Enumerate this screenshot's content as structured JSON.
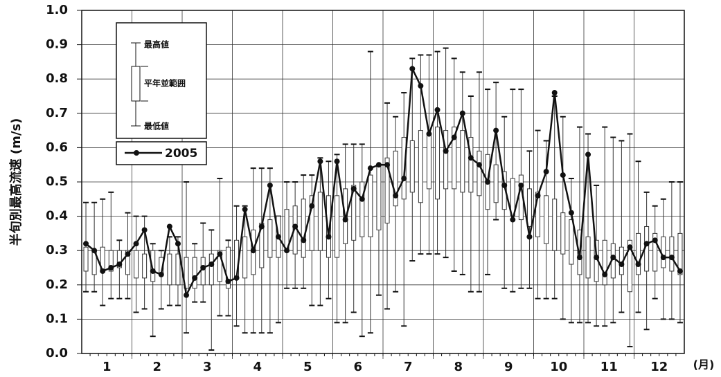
{
  "chart_data": {
    "type": "boxplot",
    "ylabel": "半旬別最高流速 (m/s)",
    "xunit": "(月)",
    "categories": [
      "1",
      "2",
      "3",
      "4",
      "5",
      "6",
      "7",
      "8",
      "9",
      "10",
      "11",
      "12"
    ],
    "periods_per_category": 6,
    "ylim": [
      0,
      1
    ],
    "yticks": [
      {
        "value": 0,
        "label": "0.0"
      },
      {
        "value": 0.1,
        "label": "0.1"
      },
      {
        "value": 0.2,
        "label": "0.2"
      },
      {
        "value": 0.3,
        "label": "0.3"
      },
      {
        "value": 0.4,
        "label": "0.4"
      },
      {
        "value": 0.5,
        "label": "0.5"
      },
      {
        "value": 0.6,
        "label": "0.6"
      },
      {
        "value": 0.7,
        "label": "0.7"
      },
      {
        "value": 0.8,
        "label": "0.8"
      },
      {
        "value": 0.9,
        "label": "0.9"
      },
      {
        "value": 1,
        "label": "1.0"
      }
    ],
    "grid": true,
    "max": {
      "name": "最高値",
      "values": [
        0.44,
        0.44,
        0.45,
        0.47,
        0.33,
        0.41,
        0.4,
        0.4,
        0.32,
        0.3,
        0.34,
        0.34,
        0.5,
        0.32,
        0.38,
        0.36,
        0.51,
        0.33,
        0.43,
        0.43,
        0.54,
        0.54,
        0.54,
        0.4,
        0.5,
        0.5,
        0.52,
        0.52,
        0.57,
        0.56,
        0.58,
        0.61,
        0.61,
        0.61,
        0.88,
        0.55,
        0.73,
        0.69,
        0.76,
        0.86,
        0.87,
        0.87,
        0.88,
        0.89,
        0.86,
        0.82,
        0.75,
        0.82,
        0.77,
        0.79,
        0.69,
        0.77,
        0.77,
        0.59,
        0.65,
        0.62,
        0.75,
        0.69,
        0.51,
        0.66,
        0.64,
        0.49,
        0.66,
        0.63,
        0.62,
        0.64,
        0.56,
        0.47,
        0.43,
        0.45,
        0.5,
        0.5
      ]
    },
    "box": {
      "name": "平年並範囲",
      "low": [
        0.24,
        0.23,
        0.24,
        0.24,
        0.25,
        0.23,
        0.22,
        0.22,
        0.21,
        0.23,
        0.2,
        0.2,
        0.19,
        0.19,
        0.2,
        0.2,
        0.21,
        0.19,
        0.22,
        0.22,
        0.23,
        0.25,
        0.28,
        0.28,
        0.3,
        0.29,
        0.28,
        0.3,
        0.3,
        0.28,
        0.28,
        0.32,
        0.33,
        0.34,
        0.34,
        0.36,
        0.38,
        0.43,
        0.45,
        0.47,
        0.44,
        0.48,
        0.45,
        0.48,
        0.48,
        0.47,
        0.47,
        0.46,
        0.42,
        0.44,
        0.42,
        0.4,
        0.39,
        0.37,
        0.34,
        0.32,
        0.3,
        0.29,
        0.26,
        0.23,
        0.22,
        0.21,
        0.2,
        0.22,
        0.23,
        0.18,
        0.23,
        0.24,
        0.24,
        0.25,
        0.24,
        0.23
      ],
      "high": [
        0.31,
        0.3,
        0.31,
        0.3,
        0.3,
        0.3,
        0.3,
        0.29,
        0.3,
        0.28,
        0.29,
        0.29,
        0.28,
        0.28,
        0.28,
        0.29,
        0.3,
        0.31,
        0.33,
        0.34,
        0.36,
        0.38,
        0.39,
        0.4,
        0.42,
        0.43,
        0.45,
        0.46,
        0.47,
        0.46,
        0.46,
        0.48,
        0.49,
        0.5,
        0.52,
        0.55,
        0.57,
        0.59,
        0.63,
        0.62,
        0.65,
        0.64,
        0.66,
        0.65,
        0.66,
        0.65,
        0.63,
        0.59,
        0.58,
        0.55,
        0.53,
        0.51,
        0.52,
        0.48,
        0.47,
        0.46,
        0.45,
        0.41,
        0.39,
        0.36,
        0.34,
        0.33,
        0.33,
        0.32,
        0.31,
        0.33,
        0.35,
        0.37,
        0.35,
        0.34,
        0.34,
        0.35
      ]
    },
    "min": {
      "name": "最低値",
      "values": [
        0.18,
        0.18,
        0.14,
        0.16,
        0.16,
        0.16,
        0.12,
        0.13,
        0.05,
        0.13,
        0.14,
        0.14,
        0.06,
        0.15,
        0.15,
        0.01,
        0.11,
        0.11,
        0.08,
        0.06,
        0.06,
        0.06,
        0.06,
        0.09,
        0.19,
        0.19,
        0.19,
        0.14,
        0.14,
        0.16,
        0.09,
        0.09,
        0.12,
        0.05,
        0.06,
        0.17,
        0.13,
        0.18,
        0.08,
        0.27,
        0.29,
        0.29,
        0.29,
        0.28,
        0.24,
        0.23,
        0.18,
        0.18,
        0.23,
        0.39,
        0.19,
        0.18,
        0.19,
        0.19,
        0.16,
        0.16,
        0.16,
        0.1,
        0.09,
        0.09,
        0.09,
        0.08,
        0.08,
        0.09,
        0.12,
        0.02,
        0.12,
        0.07,
        0.16,
        0.1,
        0.1,
        0.09
      ]
    },
    "series": [
      {
        "name": "2005",
        "color": "#111111",
        "values": [
          0.32,
          0.3,
          0.24,
          0.25,
          0.26,
          0.29,
          0.32,
          0.36,
          0.24,
          0.23,
          0.37,
          0.32,
          0.17,
          0.22,
          0.25,
          0.26,
          0.29,
          0.21,
          0.22,
          0.42,
          0.3,
          0.37,
          0.49,
          0.34,
          0.3,
          0.37,
          0.33,
          0.43,
          0.56,
          0.34,
          0.56,
          0.39,
          0.48,
          0.45,
          0.54,
          0.55,
          0.55,
          0.46,
          0.51,
          0.83,
          0.78,
          0.64,
          0.71,
          0.59,
          0.63,
          0.7,
          0.57,
          0.55,
          0.5,
          0.65,
          0.49,
          0.39,
          0.49,
          0.34,
          0.46,
          0.53,
          0.76,
          0.52,
          0.41,
          0.28,
          0.58,
          0.28,
          0.23,
          0.28,
          0.26,
          0.31,
          0.26,
          0.32,
          0.33,
          0.28,
          0.28,
          0.24
        ]
      }
    ]
  }
}
